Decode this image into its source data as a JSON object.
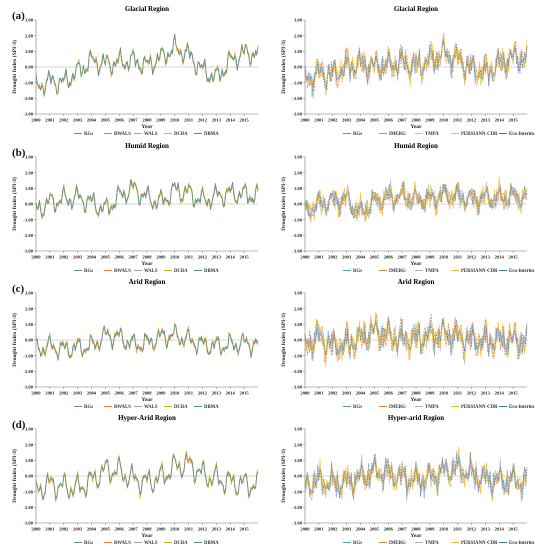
{
  "legend_sets": {
    "merged": [
      {
        "name": "RGs",
        "color": "#5b8fc9"
      },
      {
        "name": "RWALS",
        "color": "#ed7d31"
      },
      {
        "name": "WALS",
        "color": "#a5a5a5"
      },
      {
        "name": "DCBA",
        "color": "#e0b21a"
      },
      {
        "name": "DBMA",
        "color": "#4f8f8b"
      }
    ],
    "satellite": [
      {
        "name": "RGs",
        "color": "#5b8fc9"
      },
      {
        "name": "IMERG",
        "color": "#ed7d31"
      },
      {
        "name": "TMPA",
        "color": "#bdbdbd"
      },
      {
        "name": "PERSIANN-CDR",
        "color": "#f2c12e"
      },
      {
        "name": "Era-Interim",
        "color": "#3f6fb0"
      }
    ]
  },
  "chart_data": [
    {
      "id": "glacial-merged",
      "type": "line",
      "letter": "(a)",
      "title": "Glacial Region",
      "xlabel": "Year",
      "ylabel": "Drought Index (SPI-3)",
      "legend_set": "merged",
      "yticks": [
        "3.00",
        "2.00",
        "1.00",
        "0.00",
        "-1.00",
        "-2.00",
        "-3.00"
      ],
      "ylim": [
        -3,
        3
      ],
      "xticks": [
        "2000",
        "2001",
        "2002",
        "2003",
        "2004",
        "2005",
        "2006",
        "2007",
        "2008",
        "2009",
        "2010",
        "2011",
        "2012",
        "2013",
        "2014",
        "2015"
      ],
      "xlim": [
        2000,
        2016
      ],
      "seed": 11,
      "trend": [
        [
          2000,
          -1.3
        ],
        [
          2001,
          -0.9
        ],
        [
          2002,
          -1.0
        ],
        [
          2003,
          -0.3
        ],
        [
          2004,
          0.4
        ],
        [
          2005,
          0.2
        ],
        [
          2006,
          0.3
        ],
        [
          2007,
          0.4
        ],
        [
          2008,
          0.1
        ],
        [
          2009,
          0.6
        ],
        [
          2010,
          1.2
        ],
        [
          2011,
          0.8
        ],
        [
          2012,
          -0.2
        ],
        [
          2013,
          -0.7
        ],
        [
          2014,
          0.4
        ],
        [
          2015,
          0.9
        ],
        [
          2016,
          0.8
        ]
      ],
      "amp": 0.75,
      "spread": 0.18
    },
    {
      "id": "glacial-sat",
      "type": "line",
      "letter": "",
      "title": "Glacial Region",
      "xlabel": "Year",
      "ylabel": "Drought Index (SPI-3)",
      "legend_set": "satellite",
      "yticks": [
        "3.00",
        "2.00",
        "1.00",
        "0.00",
        "-1.00",
        "-2.00",
        "-3.00"
      ],
      "ylim": [
        -3,
        3
      ],
      "xticks": [
        "2000",
        "2001",
        "2002",
        "2003",
        "2004",
        "2005",
        "2006",
        "2007",
        "2008",
        "2009",
        "2010",
        "2011",
        "2012",
        "2013",
        "2014",
        "2015"
      ],
      "xlim": [
        2000,
        2016
      ],
      "seed": 23,
      "trend": [
        [
          2000,
          -0.8
        ],
        [
          2001,
          -0.4
        ],
        [
          2002,
          -0.5
        ],
        [
          2003,
          0.0
        ],
        [
          2004,
          0.2
        ],
        [
          2005,
          0.0
        ],
        [
          2006,
          0.1
        ],
        [
          2007,
          0.3
        ],
        [
          2008,
          0.0
        ],
        [
          2009,
          0.4
        ],
        [
          2010,
          0.9
        ],
        [
          2011,
          0.5
        ],
        [
          2012,
          -0.1
        ],
        [
          2013,
          -0.4
        ],
        [
          2014,
          0.2
        ],
        [
          2015,
          0.6
        ],
        [
          2016,
          0.5
        ]
      ],
      "amp": 0.8,
      "spread": 0.75
    },
    {
      "id": "humid-merged",
      "type": "line",
      "letter": "(b)",
      "title": "Humid Region",
      "xlabel": "Year",
      "ylabel": "Drought Index (SPI-3)",
      "legend_set": "merged",
      "yticks": [
        "3.00",
        "2.00",
        "1.00",
        "0.00",
        "-1.00",
        "-2.00",
        "-3.00"
      ],
      "ylim": [
        -3,
        3
      ],
      "xticks": [
        "2000",
        "2001",
        "2002",
        "2003",
        "2004",
        "2005",
        "2006",
        "2007",
        "2008",
        "2009",
        "2010",
        "2011",
        "2012",
        "2013",
        "2014",
        "2015"
      ],
      "xlim": [
        2000,
        2016
      ],
      "seed": 37,
      "trend": [
        [
          2000,
          -0.4
        ],
        [
          2001,
          0.1
        ],
        [
          2002,
          0.3
        ],
        [
          2003,
          0.4
        ],
        [
          2004,
          0.1
        ],
        [
          2005,
          -0.4
        ],
        [
          2006,
          0.5
        ],
        [
          2007,
          1.0
        ],
        [
          2008,
          0.4
        ],
        [
          2009,
          0.1
        ],
        [
          2010,
          0.9
        ],
        [
          2011,
          0.7
        ],
        [
          2012,
          0.2
        ],
        [
          2013,
          0.5
        ],
        [
          2014,
          0.7
        ],
        [
          2015,
          0.6
        ],
        [
          2016,
          0.5
        ]
      ],
      "amp": 0.8,
      "spread": 0.16
    },
    {
      "id": "humid-sat",
      "type": "line",
      "letter": "",
      "title": "Humid Region",
      "xlabel": "Year",
      "ylabel": "Drought Index (SPI-3)",
      "legend_set": "satellite",
      "yticks": [
        "3.00",
        "2.00",
        "1.00",
        "0.00",
        "-1.00",
        "-2.00",
        "-3.00"
      ],
      "ylim": [
        -3,
        3
      ],
      "xticks": [
        "2000",
        "2001",
        "2002",
        "2003",
        "2004",
        "2005",
        "2006",
        "2007",
        "2008",
        "2009",
        "2010",
        "2011",
        "2012",
        "2013",
        "2014",
        "2015"
      ],
      "xlim": [
        2000,
        2016
      ],
      "seed": 41,
      "trend": [
        [
          2000,
          -0.5
        ],
        [
          2001,
          0.0
        ],
        [
          2002,
          0.2
        ],
        [
          2003,
          0.3
        ],
        [
          2004,
          -0.6
        ],
        [
          2005,
          0.2
        ],
        [
          2006,
          0.4
        ],
        [
          2007,
          0.5
        ],
        [
          2008,
          0.3
        ],
        [
          2009,
          0.3
        ],
        [
          2010,
          0.6
        ],
        [
          2011,
          0.5
        ],
        [
          2012,
          0.3
        ],
        [
          2013,
          0.4
        ],
        [
          2014,
          0.4
        ],
        [
          2015,
          0.5
        ],
        [
          2016,
          0.4
        ]
      ],
      "amp": 0.7,
      "spread": 0.7
    },
    {
      "id": "arid-merged",
      "type": "line",
      "letter": "(c)",
      "title": "Arid Region",
      "xlabel": "Year",
      "ylabel": "Drought Index (SPI-3)",
      "legend_set": "merged",
      "yticks": [
        "3.00",
        "2.00",
        "1.00",
        "0.00",
        "-1.00",
        "-2.00",
        "-3.00"
      ],
      "ylim": [
        -3,
        3
      ],
      "xticks": [
        "2000",
        "2001",
        "2002",
        "2003",
        "2004",
        "2005",
        "2006",
        "2007",
        "2008",
        "2009",
        "2010",
        "2011",
        "2012",
        "2013",
        "2014",
        "2015"
      ],
      "xlim": [
        2000,
        2016
      ],
      "seed": 53,
      "trend": [
        [
          2000,
          -0.6
        ],
        [
          2001,
          -0.4
        ],
        [
          2002,
          -0.6
        ],
        [
          2003,
          -0.5
        ],
        [
          2004,
          -0.4
        ],
        [
          2005,
          0.3
        ],
        [
          2006,
          0.2
        ],
        [
          2007,
          -0.3
        ],
        [
          2008,
          -0.2
        ],
        [
          2009,
          0.2
        ],
        [
          2010,
          0.3
        ],
        [
          2011,
          0.0
        ],
        [
          2012,
          -0.3
        ],
        [
          2013,
          -0.4
        ],
        [
          2014,
          -0.3
        ],
        [
          2015,
          -0.2
        ],
        [
          2016,
          -0.3
        ]
      ],
      "amp": 0.75,
      "spread": 0.17
    },
    {
      "id": "arid-sat",
      "type": "line",
      "letter": "",
      "title": "Arid Region",
      "xlabel": "Year",
      "ylabel": "Drought Index (SPI-3)",
      "legend_set": "satellite",
      "yticks": [
        "3.00",
        "2.00",
        "1.00",
        "0.00",
        "-1.00",
        "-2.00",
        "-3.00"
      ],
      "ylim": [
        -3,
        3
      ],
      "xticks": [
        "2000",
        "2001",
        "2002",
        "2003",
        "2004",
        "2005",
        "2006",
        "2007",
        "2008",
        "2009",
        "2010",
        "2011",
        "2012",
        "2013",
        "2014",
        "2015"
      ],
      "xlim": [
        2000,
        2016
      ],
      "seed": 67,
      "trend": [
        [
          2000,
          -0.3
        ],
        [
          2001,
          0.2
        ],
        [
          2002,
          -0.4
        ],
        [
          2003,
          -0.3
        ],
        [
          2004,
          0.1
        ],
        [
          2005,
          0.6
        ],
        [
          2006,
          0.3
        ],
        [
          2007,
          0.0
        ],
        [
          2008,
          0.1
        ],
        [
          2009,
          0.3
        ],
        [
          2010,
          0.4
        ],
        [
          2011,
          0.2
        ],
        [
          2012,
          0.0
        ],
        [
          2013,
          -0.1
        ],
        [
          2014,
          0.0
        ],
        [
          2015,
          0.0
        ],
        [
          2016,
          -0.1
        ]
      ],
      "amp": 0.8,
      "spread": 0.85
    },
    {
      "id": "hyperarid-merged",
      "type": "line",
      "letter": "(d)",
      "title": "Hyper-Arid Region",
      "xlabel": "Year",
      "ylabel": "Drought Index (SPI-3)",
      "legend_set": "merged",
      "yticks": [
        "3.00",
        "2.00",
        "1.00",
        "0.00",
        "-1.00",
        "-2.00",
        "-3.00"
      ],
      "ylim": [
        -3,
        3
      ],
      "xticks": [
        "2000",
        "2001",
        "2002",
        "2003",
        "2004",
        "2005",
        "2006",
        "2007",
        "2008",
        "2009",
        "2010",
        "2011",
        "2012",
        "2013",
        "2014",
        "2015"
      ],
      "xlim": [
        2000,
        2016
      ],
      "seed": 79,
      "trend": [
        [
          2000,
          -0.9
        ],
        [
          2001,
          -0.5
        ],
        [
          2002,
          -0.7
        ],
        [
          2003,
          -0.8
        ],
        [
          2004,
          -0.3
        ],
        [
          2005,
          0.4
        ],
        [
          2006,
          0.3
        ],
        [
          2007,
          -0.2
        ],
        [
          2008,
          -0.4
        ],
        [
          2009,
          -0.1
        ],
        [
          2010,
          0.6
        ],
        [
          2011,
          0.8
        ],
        [
          2012,
          0.1
        ],
        [
          2013,
          -0.2
        ],
        [
          2014,
          -0.4
        ],
        [
          2015,
          -0.5
        ],
        [
          2016,
          -0.6
        ]
      ],
      "amp": 0.95,
      "spread": 0.17
    },
    {
      "id": "hyperarid-sat",
      "type": "line",
      "letter": "",
      "title": "Hyper-arid Region",
      "xlabel": "Year",
      "ylabel": "Drought Index (SPI-3)",
      "legend_set": "satellite",
      "yticks": [
        "3.00",
        "2.00",
        "1.00",
        "0.00",
        "-1.00",
        "-2.00",
        "-3.00"
      ],
      "ylim": [
        -3,
        3
      ],
      "xticks": [
        "2000",
        "2001",
        "2002",
        "2003",
        "2004",
        "2005",
        "2006",
        "2007",
        "2008",
        "2009",
        "2010",
        "2011",
        "2012",
        "2013",
        "2014",
        "2015"
      ],
      "xlim": [
        2000,
        2016
      ],
      "seed": 83,
      "trend": [
        [
          2000,
          -0.6
        ],
        [
          2001,
          -0.3
        ],
        [
          2002,
          -0.5
        ],
        [
          2003,
          -0.4
        ],
        [
          2004,
          -0.1
        ],
        [
          2005,
          0.3
        ],
        [
          2006,
          0.2
        ],
        [
          2007,
          -0.1
        ],
        [
          2008,
          -0.3
        ],
        [
          2009,
          -0.1
        ],
        [
          2010,
          0.3
        ],
        [
          2011,
          0.5
        ],
        [
          2012,
          0.1
        ],
        [
          2013,
          -0.2
        ],
        [
          2014,
          -0.3
        ],
        [
          2015,
          -0.3
        ],
        [
          2016,
          -0.4
        ]
      ],
      "amp": 0.85,
      "spread": 0.75
    }
  ]
}
